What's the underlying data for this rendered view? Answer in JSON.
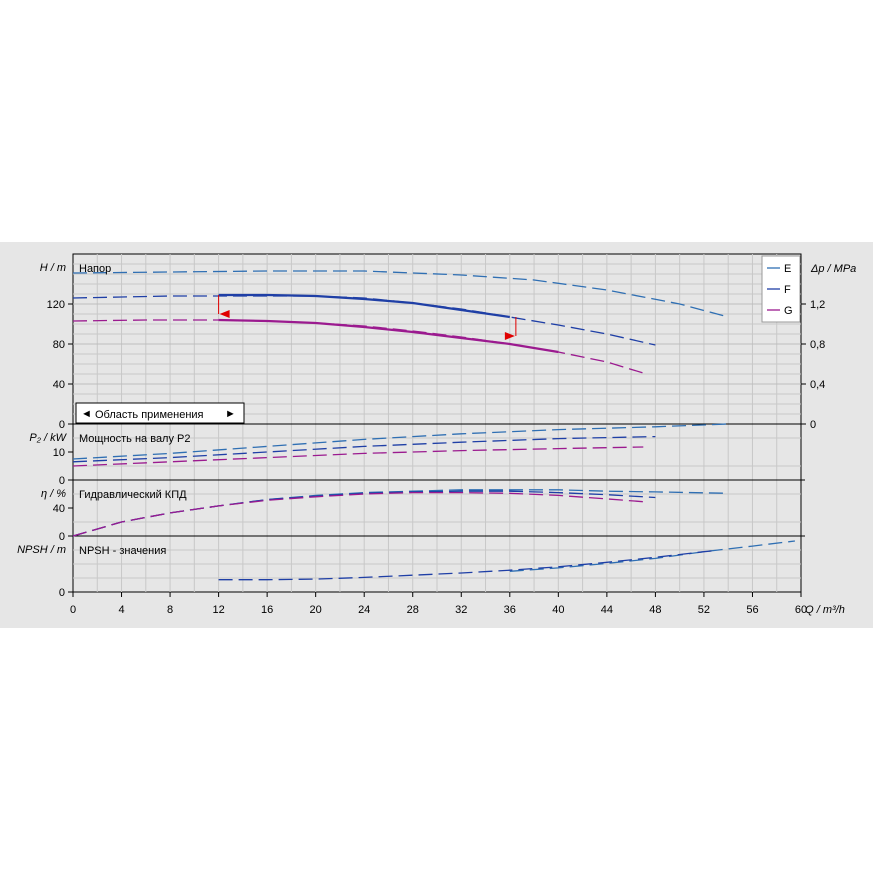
{
  "chart_data": {
    "type": "line",
    "x_axis": {
      "label": "Q / m³/h",
      "range": [
        0,
        60
      ],
      "ticks": [
        "0",
        "4",
        "8",
        "12",
        "16",
        "20",
        "24",
        "28",
        "32",
        "36",
        "40",
        "44",
        "48",
        "52",
        "56",
        "60"
      ]
    },
    "panels": {
      "head": {
        "title": "Напор",
        "ylabel": "H / m",
        "ylim": [
          0,
          160
        ],
        "ticks": [
          "0",
          "40",
          "80",
          "120"
        ],
        "right_axis": {
          "label": "Δp / MPa",
          "ticks": [
            "0",
            "0,4",
            "0,8",
            "1,2"
          ]
        },
        "series": [
          {
            "name": "E",
            "color": "#2f6fb3",
            "dash": "long",
            "points": [
              [
                0,
                151
              ],
              [
                8,
                152
              ],
              [
                16,
                153
              ],
              [
                24,
                153
              ],
              [
                32,
                149
              ],
              [
                38,
                144
              ],
              [
                44,
                134
              ],
              [
                50,
                120
              ],
              [
                54,
                107
              ]
            ]
          },
          {
            "name": "F",
            "color": "#1f3fa6",
            "dash": "long",
            "points": [
              [
                0,
                126
              ],
              [
                4,
                127
              ],
              [
                8,
                128
              ],
              [
                12,
                128
              ],
              [
                16,
                128
              ],
              [
                20,
                128
              ],
              [
                24,
                126
              ],
              [
                28,
                121
              ],
              [
                32,
                115
              ],
              [
                36,
                107
              ],
              [
                40,
                99
              ],
              [
                44,
                90
              ],
              [
                48,
                79
              ]
            ]
          },
          {
            "name": "G",
            "color": "#9b1a8f",
            "dash": "long",
            "points": [
              [
                0,
                103
              ],
              [
                6,
                104
              ],
              [
                12,
                104
              ],
              [
                16,
                103
              ],
              [
                20,
                101
              ],
              [
                24,
                98
              ],
              [
                28,
                93
              ],
              [
                32,
                87
              ],
              [
                36,
                80
              ],
              [
                40,
                72
              ],
              [
                44,
                62
              ],
              [
                47,
                51
              ]
            ]
          },
          {
            "name": "",
            "color": "#1f3fa6",
            "dash": "solid",
            "points": [
              [
                12,
                129
              ],
              [
                16,
                129
              ],
              [
                20,
                128
              ],
              [
                24,
                125
              ],
              [
                28,
                121
              ],
              [
                32,
                114
              ],
              [
                36,
                107
              ]
            ]
          },
          {
            "name": "",
            "color": "#9b1a8f",
            "dash": "solid",
            "points": [
              [
                12,
                104
              ],
              [
                16,
                103
              ],
              [
                20,
                101
              ],
              [
                24,
                97
              ],
              [
                28,
                92
              ],
              [
                32,
                86
              ],
              [
                36,
                80
              ],
              [
                40,
                72
              ]
            ]
          }
        ],
        "application_range": {
          "label": "Область применения",
          "q_min": 12,
          "q_max": 36.5
        }
      },
      "power": {
        "title": "Мощность на валу P2",
        "ylabel": "P₂ / kW",
        "ylim": [
          0,
          20
        ],
        "ticks": [
          "0",
          "10"
        ],
        "series": [
          {
            "name": "E",
            "color": "#2f6fb3",
            "points": [
              [
                0,
                7.5
              ],
              [
                8,
                9.5
              ],
              [
                16,
                12
              ],
              [
                24,
                14.5
              ],
              [
                32,
                16.5
              ],
              [
                40,
                18
              ],
              [
                48,
                19
              ],
              [
                54,
                20
              ]
            ]
          },
          {
            "name": "F",
            "color": "#1f3fa6",
            "points": [
              [
                0,
                6.5
              ],
              [
                8,
                8
              ],
              [
                16,
                10
              ],
              [
                24,
                12
              ],
              [
                32,
                13.5
              ],
              [
                40,
                14.8
              ],
              [
                48,
                15.5
              ]
            ]
          },
          {
            "name": "G",
            "color": "#9b1a8f",
            "points": [
              [
                0,
                5
              ],
              [
                8,
                6.5
              ],
              [
                16,
                8
              ],
              [
                24,
                9.5
              ],
              [
                32,
                10.5
              ],
              [
                40,
                11.2
              ],
              [
                47,
                11.8
              ]
            ]
          }
        ]
      },
      "efficiency": {
        "title": "Гидравлический КПД",
        "ylabel": "η / %",
        "ylim": [
          0,
          80
        ],
        "ticks": [
          "0",
          "40"
        ],
        "series": [
          {
            "name": "E",
            "color": "#2f6fb3",
            "points": [
              [
                0,
                0
              ],
              [
                4,
                20
              ],
              [
                8,
                33
              ],
              [
                12,
                43
              ],
              [
                16,
                52
              ],
              [
                20,
                58
              ],
              [
                24,
                62
              ],
              [
                28,
                64
              ],
              [
                32,
                66
              ],
              [
                36,
                66
              ],
              [
                40,
                66
              ],
              [
                44,
                64
              ],
              [
                48,
                63
              ],
              [
                54,
                61
              ]
            ]
          },
          {
            "name": "F",
            "color": "#1f3fa6",
            "points": [
              [
                0,
                0
              ],
              [
                4,
                20
              ],
              [
                8,
                33
              ],
              [
                12,
                43
              ],
              [
                16,
                52
              ],
              [
                20,
                57
              ],
              [
                24,
                61
              ],
              [
                28,
                63
              ],
              [
                32,
                64
              ],
              [
                36,
                64
              ],
              [
                40,
                62
              ],
              [
                44,
                59
              ],
              [
                48,
                55
              ]
            ]
          },
          {
            "name": "G",
            "color": "#9b1a8f",
            "points": [
              [
                0,
                0
              ],
              [
                4,
                20
              ],
              [
                8,
                33
              ],
              [
                12,
                43
              ],
              [
                16,
                51
              ],
              [
                20,
                56
              ],
              [
                24,
                60
              ],
              [
                28,
                62
              ],
              [
                32,
                62
              ],
              [
                36,
                61
              ],
              [
                40,
                58
              ],
              [
                44,
                53
              ],
              [
                47,
                49
              ]
            ]
          }
        ]
      },
      "npsh": {
        "title": "NPSH - значения",
        "ylabel": "NPSH / m",
        "ylim": [
          0,
          10
        ],
        "ticks": [
          "0"
        ],
        "series": [
          {
            "name": "E",
            "color": "#2f6fb3",
            "points": [
              [
                36,
                3.7
              ],
              [
                40,
                4.3
              ],
              [
                44,
                5.1
              ],
              [
                48,
                6.0
              ],
              [
                52,
                7.2
              ],
              [
                56,
                8.2
              ],
              [
                59.5,
                9.1
              ]
            ]
          },
          {
            "name": "F",
            "color": "#1f3fa6",
            "points": [
              [
                12,
                2.2
              ],
              [
                16,
                2.2
              ],
              [
                20,
                2.3
              ],
              [
                24,
                2.6
              ],
              [
                28,
                3.0
              ],
              [
                32,
                3.4
              ],
              [
                36,
                3.9
              ],
              [
                40,
                4.5
              ],
              [
                44,
                5.3
              ],
              [
                48,
                6.2
              ],
              [
                52,
                7.2
              ],
              [
                53,
                7.4
              ]
            ]
          }
        ]
      }
    },
    "legend": {
      "placement": "top-right",
      "entries": [
        "E",
        "F",
        "G"
      ]
    }
  }
}
